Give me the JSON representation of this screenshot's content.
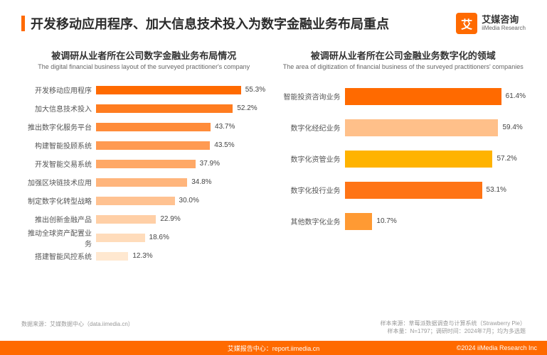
{
  "header": {
    "title": "开发移动应用程序、加大信息技术投入为数字金融业务布局重点",
    "logo_cn": "艾媒咨询",
    "logo_en": "iiMedia Research",
    "logo_glyph": "艾"
  },
  "chart_left": {
    "title_cn": "被调研从业者所在公司数字金融业务布局情况",
    "title_en": "The digital financial business layout of the surveyed practitioner's company",
    "max": 65,
    "bars": [
      {
        "label": "开发移动应用程序",
        "value": 55.3,
        "color": "#ff6a00"
      },
      {
        "label": "加大信息技术投入",
        "value": 52.2,
        "color": "#ff7c1f"
      },
      {
        "label": "推出数字化服务平台",
        "value": 43.7,
        "color": "#ff8c3a"
      },
      {
        "label": "构建智能投顾系统",
        "value": 43.5,
        "color": "#ff9a52"
      },
      {
        "label": "开发智能交易系统",
        "value": 37.9,
        "color": "#ffa866"
      },
      {
        "label": "加强区块链技术应用",
        "value": 34.8,
        "color": "#ffb57c"
      },
      {
        "label": "制定数字化转型战略",
        "value": 30.0,
        "color": "#ffc291"
      },
      {
        "label": "推出创新金融产品",
        "value": 22.9,
        "color": "#ffcfa6"
      },
      {
        "label": "推动全球资产配置业务",
        "value": 18.6,
        "color": "#ffdcbb"
      },
      {
        "label": "搭建智能风控系统",
        "value": 12.3,
        "color": "#ffe8d0"
      }
    ]
  },
  "chart_right": {
    "title_cn": "被调研从业者所在公司金融业务数字化的领域",
    "title_en": "The area of digitization of financial business of the surveyed practitioners' companies",
    "max": 70,
    "bars": [
      {
        "label": "智能投资咨询业务",
        "value": 61.4,
        "color": "#ff6a00"
      },
      {
        "label": "数字化经纪业务",
        "value": 59.4,
        "color": "#ffc08a"
      },
      {
        "label": "数字化资管业务",
        "value": 57.2,
        "color": "#ffb300"
      },
      {
        "label": "数字化投行业务",
        "value": 53.1,
        "color": "#ff7415"
      },
      {
        "label": "其他数字化业务",
        "value": 10.7,
        "color": "#ff9a33"
      }
    ]
  },
  "footer": {
    "left": "数据来源：艾媒数据中心（data.iimedia.cn）",
    "right1": "样本来源：草莓派数据调查与计算系统（Strawberry Pie）",
    "right2": "样本量：N=1797；调研时间：2024年7月；均为多选题"
  },
  "bottom": {
    "center": "艾媒报告中心：report.iimedia.cn",
    "copy": "©2024 iiMedia Research Inc"
  }
}
